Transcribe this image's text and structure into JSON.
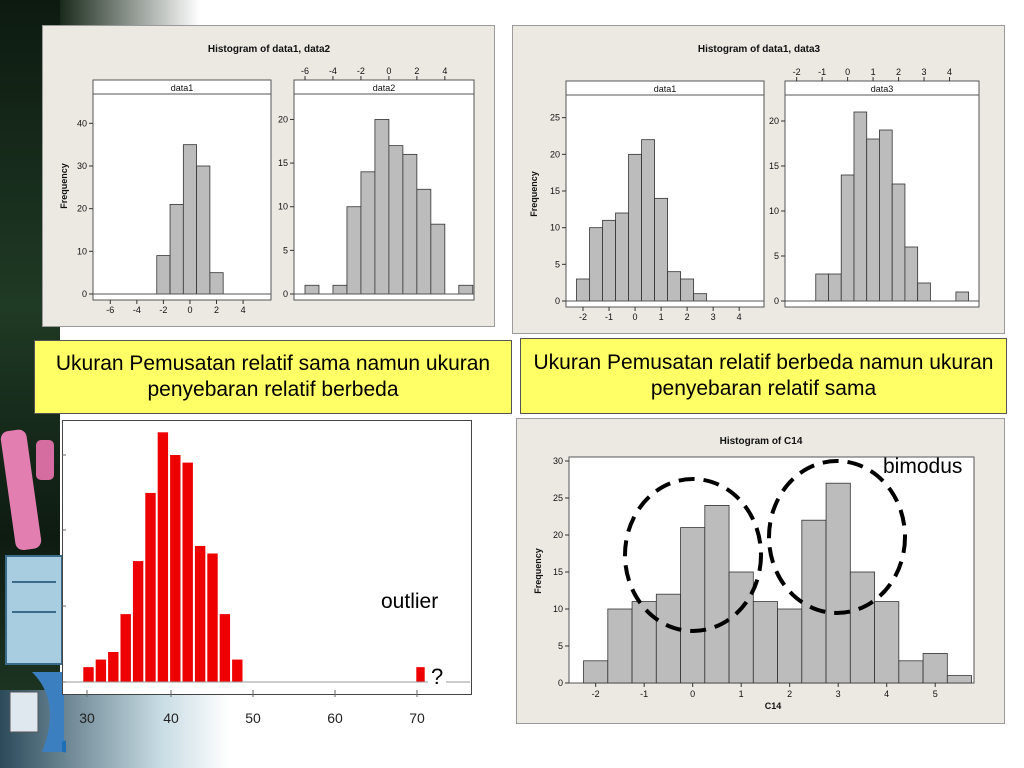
{
  "top_left": {
    "title": "Histogram of data1, data2",
    "ylabel": "Frequency",
    "panels": [
      {
        "label": "data1",
        "yticks": [
          0,
          10,
          20,
          30,
          40
        ],
        "ymax": 45,
        "xticks": [
          "-6",
          "-4",
          "-2",
          "0",
          "2",
          "4"
        ],
        "xtick_vals": [
          -6,
          -4,
          -2,
          0,
          2,
          4
        ],
        "xmin": -7,
        "xmax": 5.8,
        "bins": [
          {
            "x0": -2.5,
            "x1": -1.5,
            "v": 9
          },
          {
            "x0": -1.5,
            "x1": -0.5,
            "v": 21
          },
          {
            "x0": -0.5,
            "x1": 0.5,
            "v": 35
          },
          {
            "x0": 0.5,
            "x1": 1.5,
            "v": 30
          },
          {
            "x0": 1.5,
            "x1": 2.5,
            "v": 5
          }
        ]
      },
      {
        "label": "data2",
        "yticks": [
          0,
          5,
          10,
          15,
          20
        ],
        "ymax": 22,
        "xticks": [
          "-6",
          "-4",
          "-2",
          "0",
          "2",
          "4"
        ],
        "xtick_vals": [
          -6,
          -4,
          -2,
          0,
          2,
          4
        ],
        "xmin": -6.5,
        "xmax": 5.8,
        "bins": [
          {
            "x0": -6,
            "x1": -5,
            "v": 1
          },
          {
            "x0": -5,
            "x1": -4,
            "v": 0
          },
          {
            "x0": -4,
            "x1": -3,
            "v": 1
          },
          {
            "x0": -3,
            "x1": -2,
            "v": 10
          },
          {
            "x0": -2,
            "x1": -1,
            "v": 14
          },
          {
            "x0": -1,
            "x1": 0,
            "v": 20
          },
          {
            "x0": 0,
            "x1": 1,
            "v": 17
          },
          {
            "x0": 1,
            "x1": 2,
            "v": 16
          },
          {
            "x0": 2,
            "x1": 3,
            "v": 12
          },
          {
            "x0": 3,
            "x1": 4,
            "v": 8
          },
          {
            "x0": 4,
            "x1": 5,
            "v": 0
          },
          {
            "x0": 5,
            "x1": 6,
            "v": 1
          }
        ]
      }
    ]
  },
  "top_right": {
    "title": "Histogram of data1, data3",
    "ylabel": "Frequency",
    "panels": [
      {
        "label": "data1",
        "yticks": [
          0,
          5,
          10,
          15,
          20,
          25
        ],
        "ymax": 27,
        "xticks": [
          "-2",
          "-1",
          "0",
          "1",
          "2",
          "3",
          "4"
        ],
        "xtick_vals": [
          -2,
          -1,
          0,
          1,
          2,
          3,
          4
        ],
        "xmin": -2.5,
        "xmax": 4.8,
        "bins": [
          {
            "x0": -2.25,
            "x1": -1.75,
            "v": 3
          },
          {
            "x0": -1.75,
            "x1": -1.25,
            "v": 10
          },
          {
            "x0": -1.25,
            "x1": -0.75,
            "v": 11
          },
          {
            "x0": -0.75,
            "x1": -0.25,
            "v": 12
          },
          {
            "x0": -0.25,
            "x1": 0.25,
            "v": 20
          },
          {
            "x0": 0.25,
            "x1": 0.75,
            "v": 22
          },
          {
            "x0": 0.75,
            "x1": 1.25,
            "v": 14
          },
          {
            "x0": 1.25,
            "x1": 1.75,
            "v": 4
          },
          {
            "x0": 1.75,
            "x1": 2.25,
            "v": 3
          },
          {
            "x0": 2.25,
            "x1": 2.75,
            "v": 1
          }
        ]
      },
      {
        "label": "data3",
        "yticks": [
          0,
          5,
          10,
          15,
          20
        ],
        "ymax": 22,
        "xticks": [
          "-2",
          "-1",
          "0",
          "1",
          "2",
          "3",
          "4"
        ],
        "xtick_vals": [
          -2,
          -1,
          0,
          1,
          2,
          3,
          4
        ],
        "xmin": -2.3,
        "xmax": 5,
        "bins": [
          {
            "x0": -1.25,
            "x1": -0.75,
            "v": 3
          },
          {
            "x0": -0.75,
            "x1": -0.25,
            "v": 3
          },
          {
            "x0": -0.25,
            "x1": 0.25,
            "v": 14
          },
          {
            "x0": 0.25,
            "x1": 0.75,
            "v": 21
          },
          {
            "x0": 0.75,
            "x1": 1.25,
            "v": 18
          },
          {
            "x0": 1.25,
            "x1": 1.75,
            "v": 19
          },
          {
            "x0": 1.75,
            "x1": 2.25,
            "v": 13
          },
          {
            "x0": 2.25,
            "x1": 2.75,
            "v": 6
          },
          {
            "x0": 2.75,
            "x1": 3.25,
            "v": 2
          },
          {
            "x0": 4.25,
            "x1": 4.75,
            "v": 1
          }
        ]
      }
    ]
  },
  "captions": {
    "left": "Ukuran Pemusatan relatif sama namun ukuran penyebaran relatif berbeda",
    "right": "Ukuran Pemusatan relatif berbeda namun ukuran penyebaran relatif sama"
  },
  "red_hist": {
    "xticks": [
      "30",
      "40",
      "50",
      "60",
      "70"
    ],
    "xtick_vals": [
      30,
      40,
      50,
      60,
      70
    ],
    "bins": [
      {
        "x": 30,
        "v": 2
      },
      {
        "x": 31,
        "v": 3
      },
      {
        "x": 32,
        "v": 4
      },
      {
        "x": 33,
        "v": 9
      },
      {
        "x": 34,
        "v": 16
      },
      {
        "x": 35,
        "v": 25
      },
      {
        "x": 36,
        "v": 33
      },
      {
        "x": 37,
        "v": 30
      },
      {
        "x": 38,
        "v": 29
      },
      {
        "x": 39,
        "v": 18
      },
      {
        "x": 40,
        "v": 17
      },
      {
        "x": 41,
        "v": 9
      },
      {
        "x": 42,
        "v": 3
      },
      {
        "x": 71,
        "v": 2
      }
    ],
    "outlier_label": "outlier",
    "question_mark": "?"
  },
  "bottom_right": {
    "title": "Histogram of C14",
    "xlabel": "C14",
    "ylabel": "Frequency",
    "yticks": [
      0,
      5,
      10,
      15,
      20,
      25,
      30
    ],
    "xticks": [
      "-2",
      "-1",
      "0",
      "1",
      "2",
      "3",
      "4",
      "5"
    ],
    "xtick_vals": [
      -2,
      -1,
      0,
      1,
      2,
      3,
      4,
      5
    ],
    "annotation": "bimodus",
    "bins": [
      {
        "x0": -2.25,
        "x1": -1.75,
        "v": 3
      },
      {
        "x0": -1.75,
        "x1": -1.25,
        "v": 10
      },
      {
        "x0": -1.25,
        "x1": -0.75,
        "v": 11
      },
      {
        "x0": -0.75,
        "x1": -0.25,
        "v": 12
      },
      {
        "x0": -0.25,
        "x1": 0.25,
        "v": 21
      },
      {
        "x0": 0.25,
        "x1": 0.75,
        "v": 24
      },
      {
        "x0": 0.75,
        "x1": 1.25,
        "v": 15
      },
      {
        "x0": 1.25,
        "x1": 1.75,
        "v": 11
      },
      {
        "x0": 1.75,
        "x1": 2.25,
        "v": 10
      },
      {
        "x0": 2.25,
        "x1": 2.75,
        "v": 22
      },
      {
        "x0": 2.75,
        "x1": 3.25,
        "v": 27
      },
      {
        "x0": 3.25,
        "x1": 3.75,
        "v": 15
      },
      {
        "x0": 3.75,
        "x1": 4.25,
        "v": 11
      },
      {
        "x0": 4.25,
        "x1": 4.75,
        "v": 3
      },
      {
        "x0": 4.75,
        "x1": 5.25,
        "v": 4
      },
      {
        "x0": 5.25,
        "x1": 5.75,
        "v": 1
      }
    ]
  }
}
